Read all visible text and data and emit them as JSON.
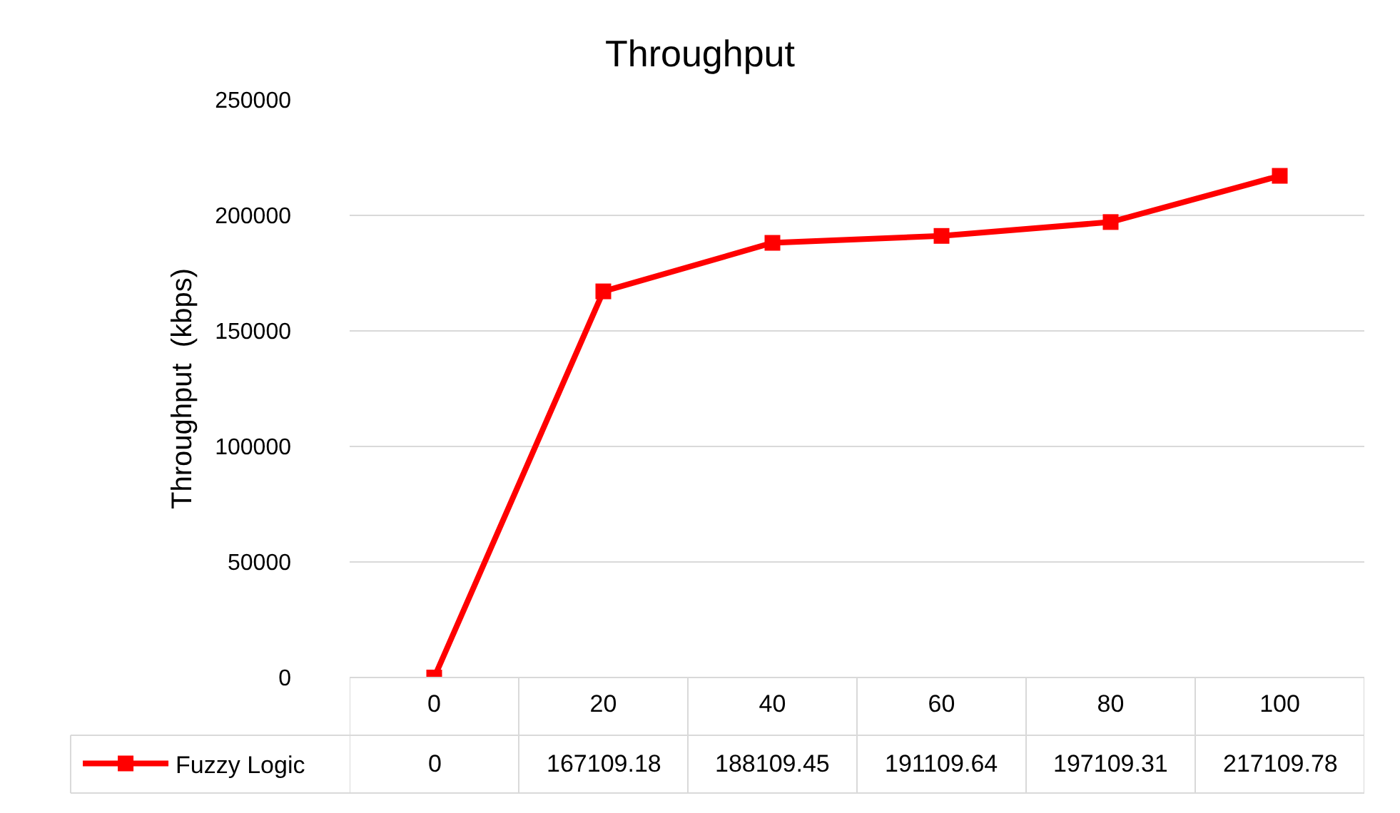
{
  "chart_data": {
    "type": "line",
    "title": "Throughput",
    "ylabel": "Throughput  (kbps)",
    "categories": [
      "0",
      "20",
      "40",
      "60",
      "80",
      "100"
    ],
    "series": [
      {
        "name": "Fuzzy Logic",
        "color": "#ff0000",
        "values": [
          0,
          167109.18,
          188109.45,
          191109.64,
          197109.31,
          217109.78
        ]
      }
    ],
    "ylim": [
      0,
      250000
    ],
    "yticks": [
      0,
      50000,
      100000,
      150000,
      200000,
      250000
    ],
    "grid": "y",
    "legend": "bottom",
    "marker": "square",
    "line_style": "solid",
    "data_labels": true
  }
}
